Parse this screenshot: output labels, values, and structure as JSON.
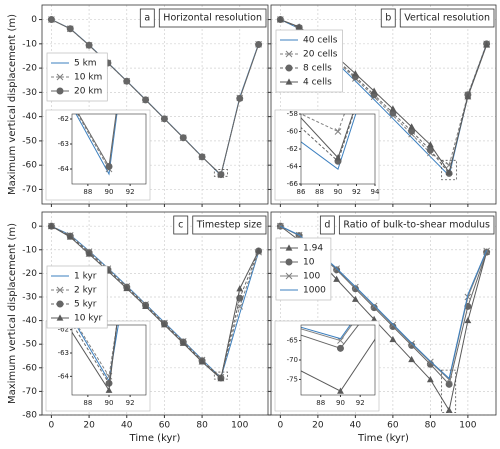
{
  "chart_data": [
    {
      "type": "line",
      "letter": "a",
      "title": "Horizontal resolution",
      "ylabel": "Maximum vertical displacement (m)",
      "x": [
        0,
        10,
        20,
        30,
        40,
        50,
        60,
        70,
        80,
        90,
        100,
        110
      ],
      "series": [
        {
          "name": "5 km",
          "color": "#3b7fbf",
          "marker": null,
          "linestyle": "-",
          "values": [
            0,
            -3.7,
            -10.5,
            -17.8,
            -25.3,
            -33,
            -40.8,
            -48.6,
            -56.5,
            -64.2,
            -32,
            -10
          ]
        },
        {
          "name": "10 km",
          "color": "#808080",
          "marker": "x",
          "linestyle": "--",
          "values": [
            0,
            -3.8,
            -10.6,
            -17.9,
            -25.4,
            -33.1,
            -40.9,
            -48.7,
            -56.6,
            -64,
            -32.3,
            -10.2
          ]
        },
        {
          "name": "20 km",
          "color": "#666666",
          "marker": "o",
          "linestyle": "-",
          "values": [
            0,
            -3.8,
            -10.6,
            -17.9,
            -25.4,
            -33.1,
            -40.9,
            -48.7,
            -56.6,
            -63.9,
            -32.5,
            -10.3
          ]
        }
      ],
      "xlim": [
        -5,
        115
      ],
      "ylim": [
        -76,
        6
      ],
      "xticks": [
        0,
        20,
        40,
        60,
        80,
        100
      ],
      "yticks": [
        -70,
        -60,
        -50,
        -40,
        -30,
        -20,
        -10,
        0
      ],
      "grid": true,
      "legend": "upper left",
      "inset": {
        "xlim": [
          86.5,
          93.5
        ],
        "ylim": [
          -64.6,
          -61.8
        ],
        "xticks": [
          88,
          90,
          92
        ],
        "yticks": [
          -62,
          -63,
          -64
        ]
      }
    },
    {
      "type": "line",
      "letter": "b",
      "title": "Vertical resolution",
      "x": [
        0,
        10,
        20,
        30,
        40,
        50,
        60,
        70,
        80,
        90,
        100,
        110
      ],
      "series": [
        {
          "name": "40 cells",
          "color": "#3b7fbf",
          "marker": null,
          "linestyle": "-",
          "values": [
            0,
            -3.7,
            -10.5,
            -17.8,
            -25.3,
            -33,
            -40.8,
            -48.6,
            -56.5,
            -64.3,
            -31.5,
            -10
          ]
        },
        {
          "name": "20 cells",
          "color": "#808080",
          "marker": "x",
          "linestyle": "--",
          "values": [
            0,
            -3.5,
            -10,
            -17,
            -24.3,
            -31.8,
            -39.5,
            -47.2,
            -55,
            -60,
            -31,
            -10
          ]
        },
        {
          "name": "8 cells",
          "color": "#666666",
          "marker": "o",
          "linestyle": "--",
          "values": [
            0,
            -3.3,
            -9.6,
            -16.5,
            -23.6,
            -31,
            -38.5,
            -46,
            -53.8,
            -63.4,
            -31,
            -10
          ]
        },
        {
          "name": "4 cells",
          "color": "#595959",
          "marker": "^",
          "linestyle": "-",
          "values": [
            0,
            -3,
            -8.8,
            -15.3,
            -22.3,
            -29.5,
            -36.8,
            -44.2,
            -51.6,
            -63,
            -31.8,
            -10.5
          ]
        }
      ],
      "xlim": [
        -5,
        115
      ],
      "ylim": [
        -76,
        6
      ],
      "xticks": [
        0,
        20,
        40,
        60,
        80,
        100
      ],
      "yticks": [
        -70,
        -60,
        -50,
        -40,
        -30,
        -20,
        -10,
        0
      ],
      "grid": true,
      "legend": "upper left",
      "inset": {
        "xlim": [
          86,
          94
        ],
        "ylim": [
          -66,
          -58
        ],
        "xticks": [
          86,
          88,
          90,
          92,
          94
        ],
        "yticks": [
          -58,
          -60,
          -62,
          -64,
          -66
        ]
      }
    },
    {
      "type": "line",
      "letter": "c",
      "title": "Timestep size",
      "ylabel": "Maximum vertical displacement (m)",
      "xlabel": "Time (kyr)",
      "x": [
        0,
        10,
        20,
        30,
        40,
        50,
        60,
        70,
        80,
        90,
        100,
        110
      ],
      "series": [
        {
          "name": "1 kyr",
          "color": "#3b7fbf",
          "marker": null,
          "linestyle": "-",
          "values": [
            0,
            -3.7,
            -10.5,
            -17.8,
            -25.3,
            -33,
            -40.8,
            -48.6,
            -56.5,
            -64.2,
            -37,
            -11
          ]
        },
        {
          "name": "2 kyr",
          "color": "#808080",
          "marker": "x",
          "linestyle": "--",
          "values": [
            0,
            -3.9,
            -10.8,
            -18,
            -25.5,
            -33.2,
            -41,
            -48.8,
            -56.7,
            -64,
            -34,
            -11
          ]
        },
        {
          "name": "5 kyr",
          "color": "#666666",
          "marker": "o",
          "linestyle": "--",
          "values": [
            0,
            -4.2,
            -11.2,
            -18.4,
            -25.8,
            -33.5,
            -41.3,
            -49.1,
            -57,
            -64.3,
            -30.5,
            -10.5
          ]
        },
        {
          "name": "10 kyr",
          "color": "#595959",
          "marker": "^",
          "linestyle": "-",
          "values": [
            0,
            -4.6,
            -11.8,
            -19,
            -26.4,
            -34,
            -41.8,
            -49.6,
            -57.5,
            -64.6,
            -26.5,
            -10.5
          ]
        }
      ],
      "xlim": [
        -5,
        115
      ],
      "ylim": [
        -80,
        6
      ],
      "xticks": [
        0,
        20,
        40,
        60,
        80,
        100
      ],
      "yticks": [
        -80,
        -70,
        -60,
        -50,
        -40,
        -30,
        -20,
        -10,
        0
      ],
      "grid": true,
      "legend": "upper left",
      "inset": {
        "xlim": [
          86.5,
          93.5
        ],
        "ylim": [
          -64.8,
          -61.8
        ],
        "xticks": [
          88,
          90,
          92
        ],
        "yticks": [
          -62,
          -63,
          -64
        ]
      }
    },
    {
      "type": "line",
      "letter": "d",
      "title": "Ratio of bulk-to-shear modulus",
      "xlabel": "Time (kyr)",
      "x": [
        0,
        10,
        20,
        30,
        40,
        50,
        60,
        70,
        80,
        90,
        100,
        110
      ],
      "series": [
        {
          "name": "1.94",
          "color": "#595959",
          "marker": "^",
          "linestyle": "-",
          "values": [
            0,
            -6,
            -14,
            -22.5,
            -31,
            -39.5,
            -48,
            -56.5,
            -65,
            -78,
            -40,
            -11
          ]
        },
        {
          "name": "10",
          "color": "#666666",
          "marker": "o",
          "linestyle": "-",
          "values": [
            0,
            -4,
            -11,
            -18.5,
            -26.5,
            -34.5,
            -42.5,
            -50.5,
            -58.5,
            -67,
            -34,
            -11
          ]
        },
        {
          "name": "100",
          "color": "#808080",
          "marker": "x",
          "linestyle": "-",
          "values": [
            0,
            -3.8,
            -10.8,
            -18,
            -25.8,
            -33.8,
            -41.8,
            -49.8,
            -57.5,
            -65,
            -30,
            -10.5
          ]
        },
        {
          "name": "1000",
          "color": "#3b7fbf",
          "marker": null,
          "linestyle": "-",
          "values": [
            0,
            -3.7,
            -10.6,
            -17.9,
            -25.6,
            -33.5,
            -41.5,
            -49.5,
            -57.2,
            -64.5,
            -29,
            -10.2
          ]
        }
      ],
      "xlim": [
        -5,
        115
      ],
      "ylim": [
        -80,
        6
      ],
      "xticks": [
        0,
        20,
        40,
        60,
        80,
        100
      ],
      "yticks": [
        -80,
        -70,
        -60,
        -50,
        -40,
        -30,
        -20,
        -10,
        0
      ],
      "grid": true,
      "legend": "upper left",
      "inset": {
        "xlim": [
          86,
          93.5
        ],
        "ylim": [
          -79,
          -61
        ],
        "xticks": [
          88,
          90,
          92
        ],
        "yticks": [
          -65,
          -70,
          -75
        ]
      }
    }
  ]
}
